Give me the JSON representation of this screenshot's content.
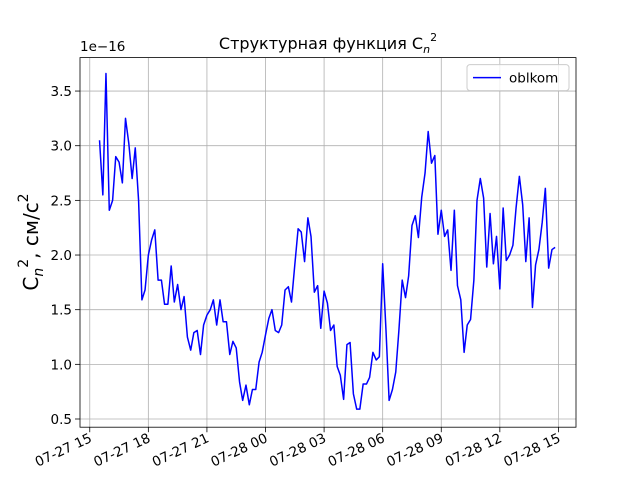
{
  "chart_data": {
    "type": "line",
    "title": {
      "text": "Структурная функция C",
      "sub": "n",
      "sup": "2"
    },
    "y_label": {
      "text": "C",
      "sub": "n",
      "sup": "2",
      "rest": ", см/с",
      "rest_sup": "2"
    },
    "y_offset_label": "1e−16",
    "x": [
      15.5,
      15.67,
      15.83,
      16,
      16.17,
      16.33,
      16.5,
      16.67,
      16.83,
      17,
      17.17,
      17.33,
      17.5,
      17.67,
      17.83,
      18,
      18.17,
      18.33,
      18.5,
      18.67,
      18.83,
      19,
      19.17,
      19.33,
      19.5,
      19.67,
      19.83,
      20,
      20.17,
      20.33,
      20.5,
      20.67,
      20.83,
      21,
      21.17,
      21.33,
      21.5,
      21.67,
      21.83,
      22,
      22.17,
      22.33,
      22.5,
      22.67,
      22.83,
      23,
      23.17,
      23.33,
      23.5,
      23.67,
      23.83,
      24,
      24.17,
      24.33,
      24.5,
      24.67,
      24.83,
      25,
      25.17,
      25.33,
      25.5,
      25.67,
      25.83,
      26,
      26.17,
      26.33,
      26.5,
      26.67,
      26.83,
      27,
      27.17,
      27.33,
      27.5,
      27.67,
      27.83,
      28,
      28.17,
      28.33,
      28.5,
      28.67,
      28.83,
      29,
      29.17,
      29.33,
      29.5,
      29.67,
      29.83,
      30,
      30.17,
      30.33,
      30.5,
      30.67,
      30.83,
      31,
      31.17,
      31.33,
      31.5,
      31.67,
      31.83,
      32,
      32.17,
      32.33,
      32.5,
      32.67,
      32.83,
      33,
      33.17,
      33.33,
      33.5,
      33.67,
      33.83,
      34,
      34.17,
      34.33,
      34.5,
      34.67,
      34.83,
      35,
      35.17,
      35.33,
      35.5,
      35.67,
      35.83,
      36,
      36.17,
      36.33,
      36.5,
      36.67,
      36.83,
      37,
      37.17,
      37.33,
      37.5,
      37.67,
      37.83,
      38,
      38.17,
      38.33,
      38.5,
      38.67,
      38.83
    ],
    "series": [
      {
        "name": "oblkom",
        "color": "#0000ff",
        "values": [
          3.05,
          2.55,
          3.66,
          2.41,
          2.5,
          2.9,
          2.85,
          2.66,
          3.25,
          3.02,
          2.7,
          2.98,
          2.5,
          1.59,
          1.68,
          2.0,
          2.14,
          2.23,
          1.77,
          1.77,
          1.55,
          1.55,
          1.9,
          1.57,
          1.73,
          1.5,
          1.62,
          1.25,
          1.13,
          1.29,
          1.31,
          1.09,
          1.36,
          1.45,
          1.5,
          1.59,
          1.36,
          1.59,
          1.39,
          1.39,
          1.09,
          1.21,
          1.15,
          0.84,
          0.67,
          0.81,
          0.63,
          0.77,
          0.77,
          1.02,
          1.11,
          1.27,
          1.42,
          1.5,
          1.31,
          1.29,
          1.36,
          1.68,
          1.71,
          1.57,
          1.91,
          2.24,
          2.21,
          1.94,
          2.34,
          2.17,
          1.66,
          1.72,
          1.33,
          1.67,
          1.56,
          1.31,
          1.36,
          0.98,
          0.9,
          0.68,
          1.18,
          1.2,
          0.73,
          0.59,
          0.59,
          0.82,
          0.82,
          0.88,
          1.11,
          1.04,
          1.07,
          1.92,
          1.31,
          0.67,
          0.77,
          0.93,
          1.31,
          1.77,
          1.61,
          1.81,
          2.27,
          2.36,
          2.16,
          2.53,
          2.75,
          3.13,
          2.84,
          2.91,
          2.19,
          2.41,
          2.17,
          2.23,
          1.86,
          2.41,
          1.72,
          1.59,
          1.11,
          1.36,
          1.41,
          1.77,
          2.5,
          2.7,
          2.52,
          1.89,
          2.38,
          1.92,
          2.17,
          1.69,
          2.43,
          1.95,
          2.0,
          2.09,
          2.43,
          2.72,
          2.46,
          1.94,
          2.34,
          1.52,
          1.91,
          2.05,
          2.3,
          2.61,
          1.88,
          2.05,
          2.07
        ]
      }
    ],
    "xlim": [
      14.5,
      39.9
    ],
    "xticks": [
      {
        "value": 15,
        "label": "07-27 15"
      },
      {
        "value": 18,
        "label": "07-27 18"
      },
      {
        "value": 21,
        "label": "07-27 21"
      },
      {
        "value": 24,
        "label": "07-28 00"
      },
      {
        "value": 27,
        "label": "07-28 03"
      },
      {
        "value": 30,
        "label": "07-28 06"
      },
      {
        "value": 33,
        "label": "07-28 09"
      },
      {
        "value": 36,
        "label": "07-28 12"
      },
      {
        "value": 39,
        "label": "07-28 15"
      }
    ],
    "ylim": [
      0.425,
      3.806
    ],
    "yticks": [
      0.5,
      {
        "value": 1,
        "label": "1.0"
      },
      1.5,
      {
        "value": 2,
        "label": "2.0"
      },
      2.5,
      {
        "value": 3,
        "label": "3.0"
      },
      3.5
    ],
    "grid": true,
    "legend": "upper right"
  }
}
